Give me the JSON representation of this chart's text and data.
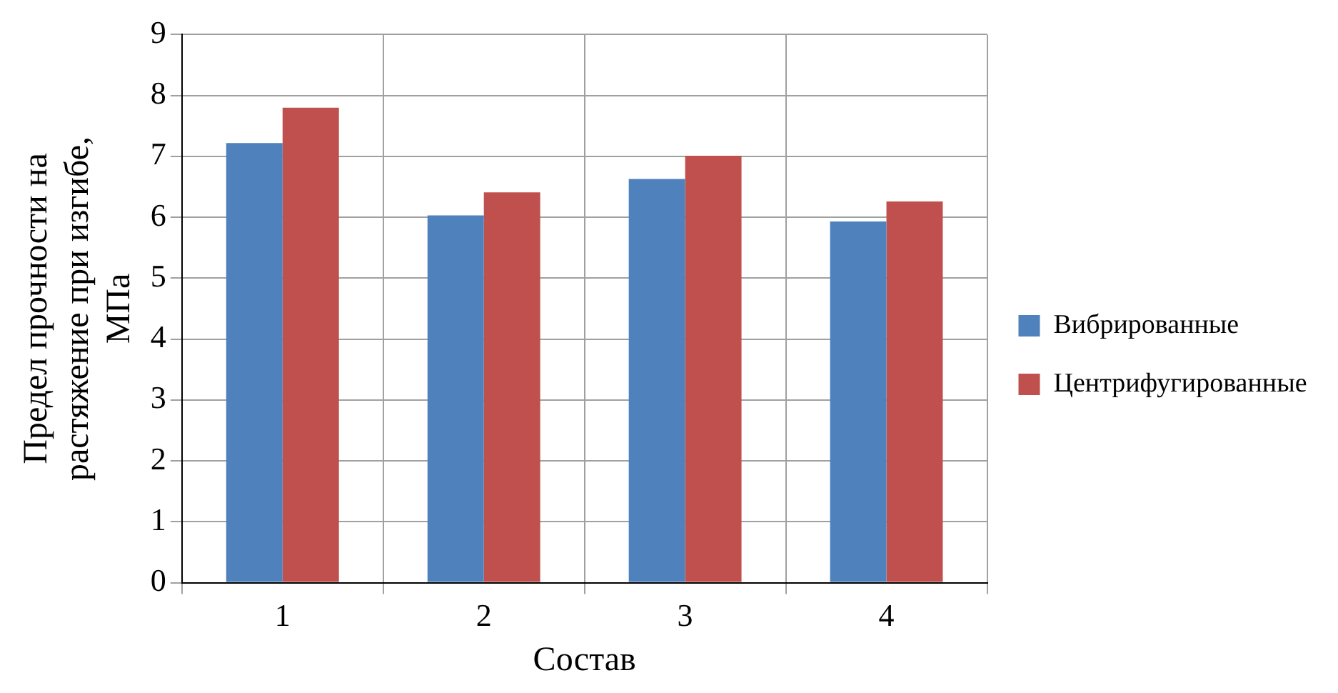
{
  "chart_data": {
    "type": "bar",
    "xlabel": "Состав",
    "ylabel": "Предел прочности на растяжение при изгибе, МПа",
    "categories": [
      "1",
      "2",
      "3",
      "4"
    ],
    "series": [
      {
        "name": "Вибрированные",
        "color": "#4f81bd",
        "values": [
          7.22,
          6.03,
          6.63,
          5.93
        ]
      },
      {
        "name": "Центрифугированные",
        "color": "#c0504d",
        "values": [
          7.8,
          6.41,
          7.01,
          6.26
        ]
      }
    ],
    "ylim": [
      0,
      9
    ],
    "yticks": [
      0,
      1,
      2,
      3,
      4,
      5,
      6,
      7,
      8,
      9
    ],
    "grid": true,
    "legend": "right"
  }
}
